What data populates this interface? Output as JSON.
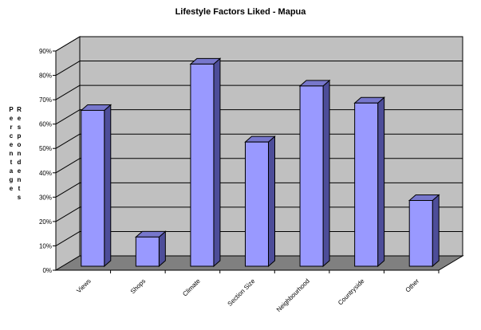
{
  "chart_data": {
    "type": "bar",
    "title": "Lifestyle Factors Liked - Mapua",
    "ylabel_lines": [
      "Percentage",
      "Respondents"
    ],
    "xlabel": "",
    "categories": [
      "Views",
      "Shops",
      "Climate",
      "Section Size",
      "Neighbourhood",
      "Countryside",
      "Other"
    ],
    "values": [
      64,
      12,
      83,
      51,
      74,
      67,
      27
    ],
    "yticks": [
      "0%",
      "10%",
      "20%",
      "30%",
      "40%",
      "50%",
      "60%",
      "70%",
      "80%",
      "90%"
    ],
    "ylim": [
      0,
      90
    ],
    "grid": true,
    "legend": "none",
    "colors": {
      "bar_front": "#9999ff",
      "bar_side": "#4d4d99",
      "bar_top": "#7777cc",
      "wall": "#c0c0c0",
      "floor": "#808080"
    }
  }
}
